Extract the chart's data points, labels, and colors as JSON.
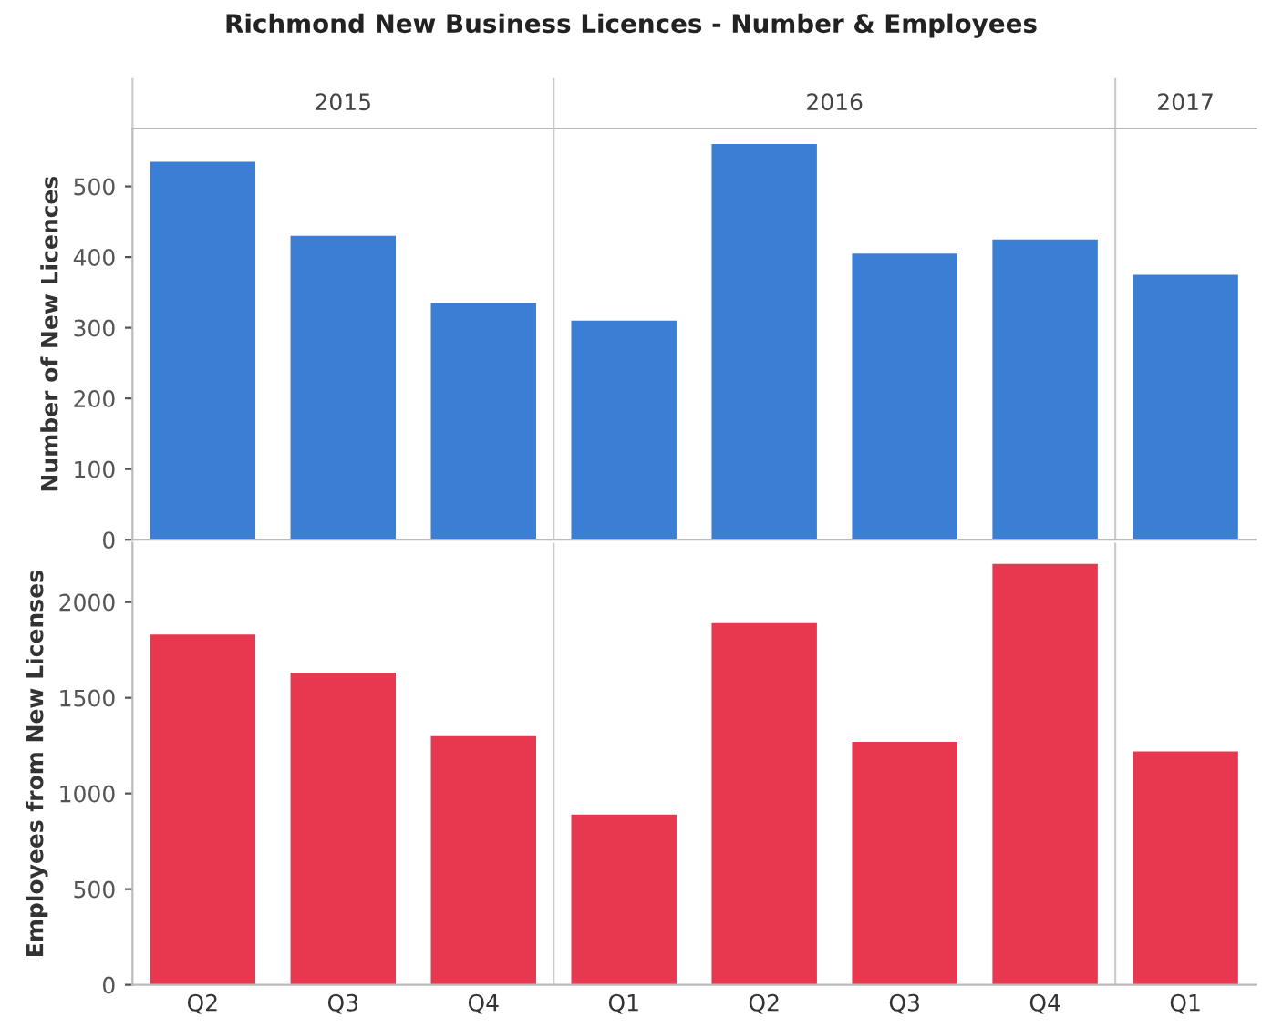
{
  "chart_data": [
    {
      "type": "bar",
      "title": "Richmond New Business Licences - Number & Employees",
      "ylabel": "Number of New Licences",
      "categories": [
        null,
        null,
        null,
        null,
        null,
        null,
        null,
        null
      ],
      "values": [
        535,
        430,
        335,
        310,
        560,
        405,
        425,
        375
      ],
      "color": "#3b7fd4",
      "ylim": [
        0,
        582
      ],
      "yticks": [
        0,
        100,
        200,
        300,
        400,
        500
      ],
      "tick_labels": "y",
      "grid": false,
      "legend": false,
      "annotations": [
        "2015",
        "2016",
        "2017"
      ]
    },
    {
      "type": "bar",
      "ylabel": "Employees from New Licenses",
      "categories": [
        "Q2",
        "Q3",
        "Q4",
        "Q1",
        "Q2",
        "Q3",
        "Q4",
        "Q1"
      ],
      "values": [
        1830,
        1630,
        1300,
        890,
        1890,
        1270,
        2200,
        1220
      ],
      "color": "#e8384f",
      "ylim": [
        0,
        2310
      ],
      "yticks": [
        0,
        500,
        1000,
        1500,
        2000
      ],
      "grid": false,
      "legend": false
    }
  ]
}
